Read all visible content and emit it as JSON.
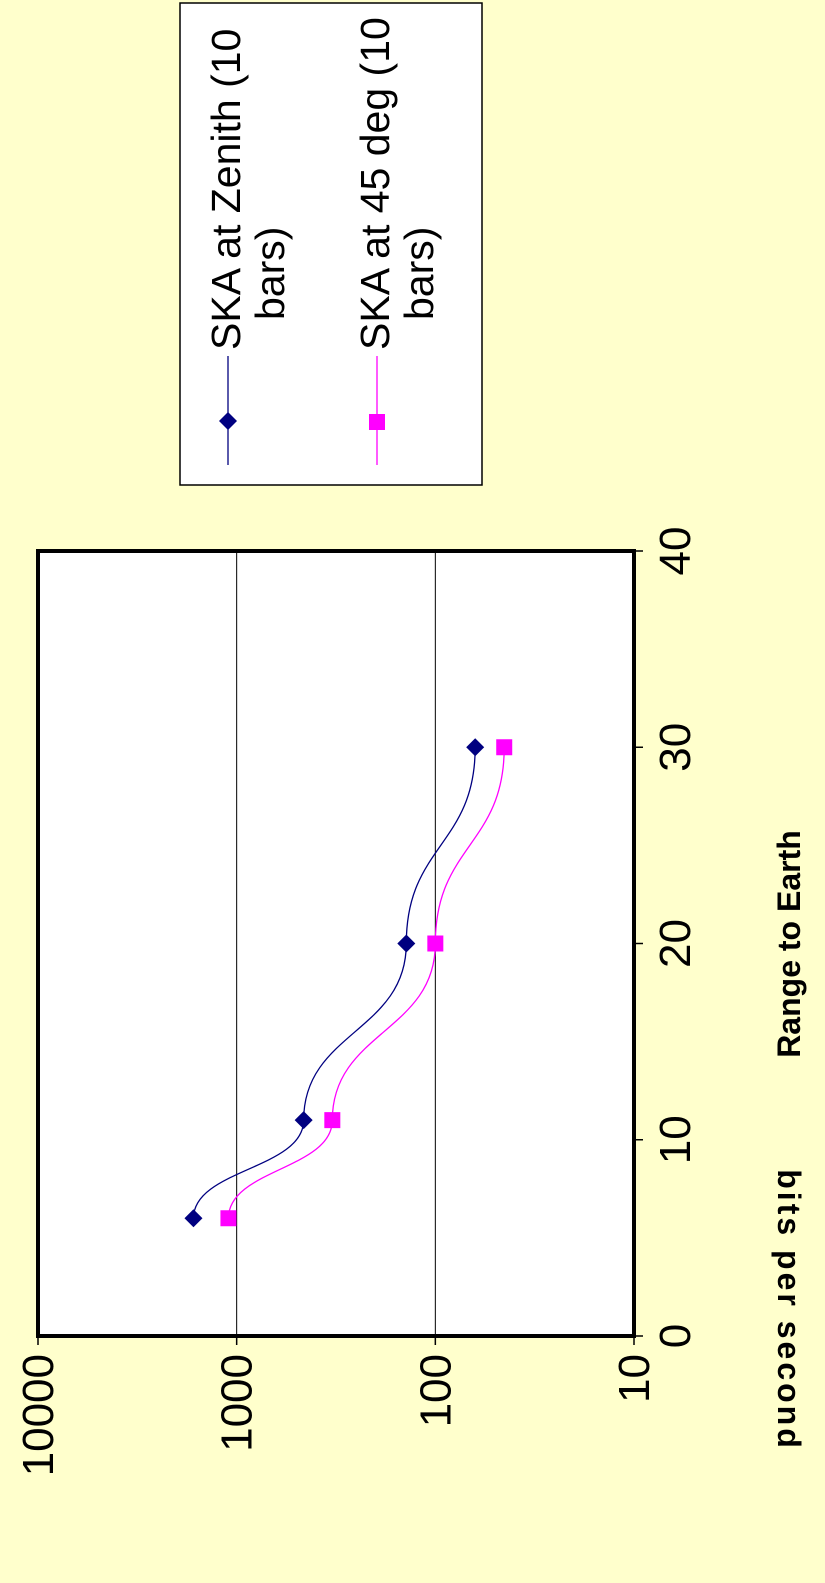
{
  "chart_data": {
    "type": "line",
    "title": "",
    "xlabel": "Range to Earth",
    "ylabel": "bits per second",
    "x_ticks": [
      "0",
      "10",
      "20",
      "30",
      "40"
    ],
    "y_ticks": [
      "10",
      "100",
      "1000",
      "10000"
    ],
    "xlim": [
      0,
      40
    ],
    "ylim": [
      10,
      10000
    ],
    "y_scale": "log",
    "grid": "horizontal major gridlines at 100 and 1000",
    "legend_position": "right",
    "series": [
      {
        "name": "SKA at Zenith (10 bars)",
        "color": "#000080",
        "marker": "diamond",
        "x": [
          6,
          11,
          20,
          30
        ],
        "y": [
          1650,
          460,
          140,
          63
        ]
      },
      {
        "name": "SKA at 45 deg (10 bars)",
        "color": "#ff00ff",
        "marker": "square",
        "x": [
          6,
          11,
          20,
          30
        ],
        "y": [
          1100,
          330,
          100,
          45
        ]
      }
    ]
  },
  "colors": {
    "background": "#ffffcc",
    "plot_area": "#ffffff",
    "axis": "#000000"
  }
}
